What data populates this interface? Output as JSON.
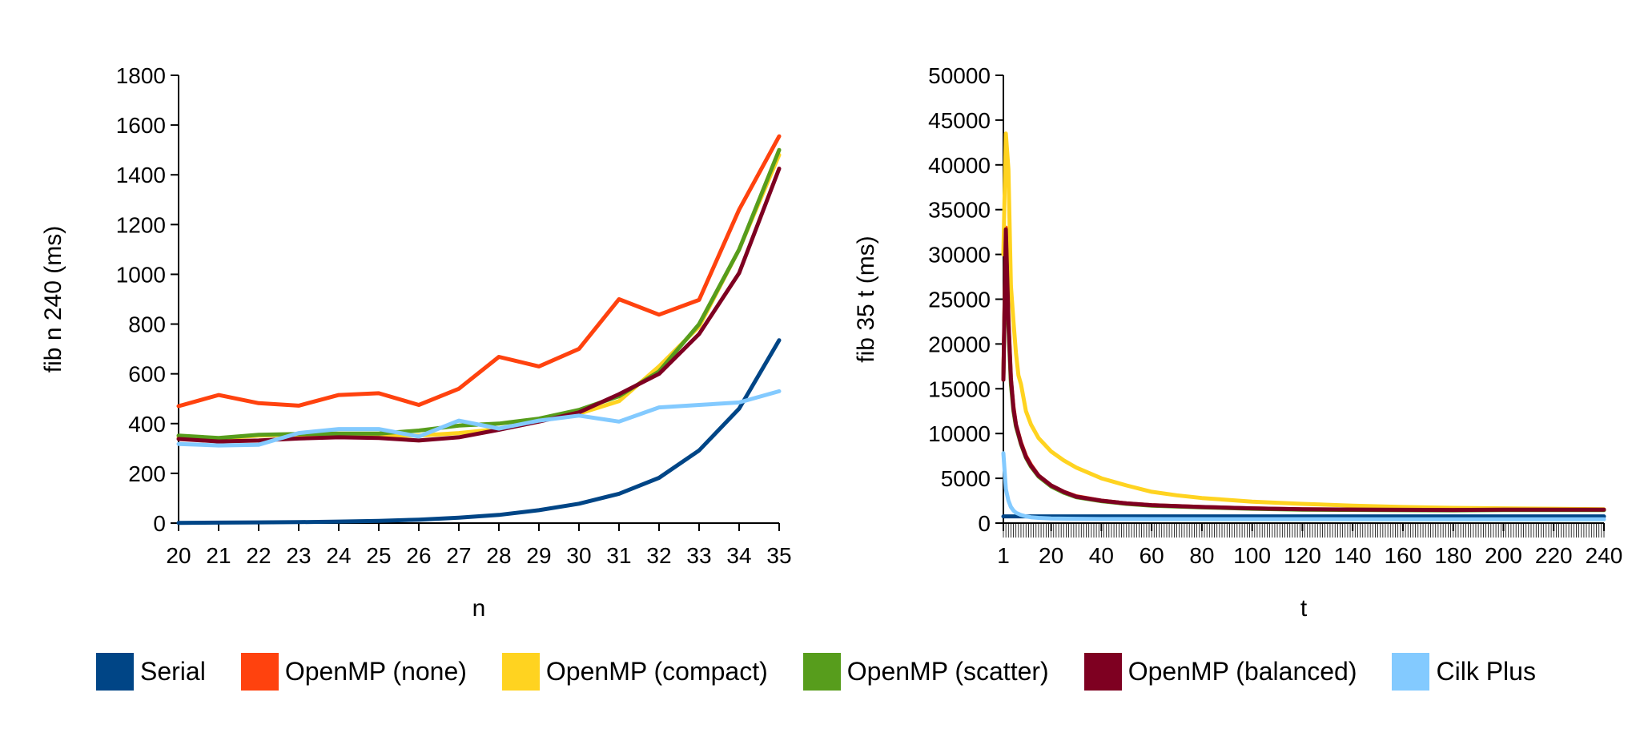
{
  "colors": {
    "Serial": "#004586",
    "OpenMP (none)": "#ff420e",
    "OpenMP (compact)": "#ffd320",
    "OpenMP (scatter)": "#579d1c",
    "OpenMP (balanced)": "#7e0021",
    "Cilk Plus": "#83caff"
  },
  "legend": [
    {
      "name": "Serial",
      "label": "Serial"
    },
    {
      "name": "OpenMP (none)",
      "label": "OpenMP (none)"
    },
    {
      "name": "OpenMP (compact)",
      "label": "OpenMP (compact)"
    },
    {
      "name": "OpenMP (scatter)",
      "label": "OpenMP (scatter)"
    },
    {
      "name": "OpenMP (balanced)",
      "label": "OpenMP (balanced)"
    },
    {
      "name": "Cilk Plus",
      "label": "Cilk Plus"
    }
  ],
  "chart_data": [
    {
      "type": "line",
      "title": "",
      "xlabel": "n",
      "ylabel": "fib n 240 (ms)",
      "x": [
        20,
        21,
        22,
        23,
        24,
        25,
        26,
        27,
        28,
        29,
        30,
        31,
        32,
        33,
        34,
        35
      ],
      "xticks": [
        "20",
        "21",
        "22",
        "23",
        "24",
        "25",
        "26",
        "27",
        "28",
        "29",
        "30",
        "31",
        "32",
        "33",
        "34",
        "35"
      ],
      "ylim": [
        0,
        1800
      ],
      "yticks": [
        "0",
        "200",
        "400",
        "600",
        "800",
        "1000",
        "1200",
        "1400",
        "1600",
        "1800"
      ],
      "grid": false,
      "legend_position": "bottom",
      "series": [
        {
          "name": "Serial",
          "values": [
            1,
            2,
            3,
            4,
            6,
            9,
            14,
            22,
            33,
            52,
            78,
            118,
            182,
            292,
            460,
            735
          ]
        },
        {
          "name": "OpenMP (none)",
          "values": [
            470,
            515,
            482,
            472,
            515,
            522,
            475,
            540,
            668,
            630,
            700,
            900,
            838,
            897,
            1260,
            1555
          ]
        },
        {
          "name": "OpenMP (compact)",
          "values": [
            345,
            340,
            352,
            355,
            355,
            352,
            352,
            362,
            378,
            410,
            440,
            490,
            630,
            790,
            1100,
            1480
          ]
        },
        {
          "name": "OpenMP (scatter)",
          "values": [
            352,
            342,
            355,
            358,
            360,
            360,
            372,
            392,
            400,
            420,
            455,
            510,
            610,
            800,
            1100,
            1500
          ]
        },
        {
          "name": "OpenMP (balanced)",
          "values": [
            338,
            328,
            332,
            340,
            345,
            342,
            332,
            345,
            375,
            408,
            445,
            518,
            600,
            760,
            1005,
            1425
          ]
        },
        {
          "name": "Cilk Plus",
          "values": [
            318,
            312,
            315,
            362,
            378,
            378,
            348,
            412,
            380,
            412,
            432,
            408,
            465,
            475,
            485,
            530
          ]
        }
      ]
    },
    {
      "type": "line",
      "title": "",
      "xlabel": "t",
      "ylabel": "fib 35 t (ms)",
      "xlim": [
        1,
        240
      ],
      "xticks": [
        "1",
        "20",
        "40",
        "60",
        "80",
        "100",
        "120",
        "140",
        "160",
        "180",
        "200",
        "220",
        "240"
      ],
      "ylim": [
        0,
        50000
      ],
      "yticks": [
        "0",
        "5000",
        "10000",
        "15000",
        "20000",
        "25000",
        "30000",
        "35000",
        "40000",
        "45000",
        "50000"
      ],
      "grid": false,
      "legend_position": "bottom",
      "series": [
        {
          "name": "Serial",
          "x": [
            1,
            240
          ],
          "values": [
            750,
            750
          ]
        },
        {
          "name": "OpenMP (none)",
          "x": [
            1,
            2,
            3,
            4,
            5,
            6,
            8,
            10,
            12,
            15,
            20,
            25,
            30,
            40,
            50,
            60,
            80,
            100,
            120,
            150,
            180,
            200,
            240
          ],
          "values": [
            16500,
            33000,
            22500,
            16000,
            13000,
            11000,
            9000,
            7500,
            6500,
            5300,
            4200,
            3500,
            3000,
            2500,
            2200,
            2000,
            1800,
            1650,
            1550,
            1500,
            1450,
            1500,
            1500
          ]
        },
        {
          "name": "OpenMP (compact)",
          "x": [
            1,
            2,
            3,
            4,
            5,
            6,
            7,
            8,
            10,
            12,
            15,
            20,
            25,
            30,
            40,
            50,
            60,
            70,
            80,
            100,
            120,
            140,
            160,
            180,
            200,
            220,
            240
          ],
          "values": [
            30000,
            43500,
            39500,
            26500,
            22500,
            19000,
            16500,
            15500,
            12500,
            11000,
            9500,
            8000,
            7000,
            6200,
            5000,
            4200,
            3500,
            3100,
            2800,
            2400,
            2150,
            1950,
            1800,
            1700,
            1650,
            1600,
            1550
          ]
        },
        {
          "name": "OpenMP (scatter)",
          "x": [
            1,
            2,
            3,
            4,
            5,
            6,
            8,
            10,
            12,
            15,
            20,
            25,
            30,
            40,
            50,
            60,
            80,
            100,
            120,
            150,
            180,
            200,
            240
          ],
          "values": [
            16000,
            32000,
            22000,
            15500,
            12500,
            10800,
            8800,
            7300,
            6300,
            5200,
            4100,
            3400,
            2900,
            2450,
            2150,
            1950,
            1750,
            1600,
            1500,
            1450,
            1420,
            1450,
            1450
          ]
        },
        {
          "name": "OpenMP (balanced)",
          "x": [
            1,
            2,
            3,
            4,
            5,
            6,
            8,
            10,
            12,
            15,
            20,
            25,
            30,
            40,
            50,
            60,
            80,
            100,
            120,
            150,
            180,
            200,
            240
          ],
          "values": [
            16000,
            32800,
            22800,
            16200,
            12800,
            11000,
            8900,
            7400,
            6400,
            5300,
            4200,
            3500,
            2950,
            2500,
            2200,
            2000,
            1800,
            1650,
            1550,
            1500,
            1470,
            1500,
            1500
          ]
        },
        {
          "name": "Cilk Plus",
          "x": [
            1,
            2,
            3,
            4,
            5,
            6,
            8,
            10,
            12,
            15,
            20,
            30,
            40,
            60,
            100,
            150,
            200,
            240
          ],
          "values": [
            7800,
            3800,
            2500,
            1800,
            1400,
            1150,
            900,
            750,
            650,
            580,
            520,
            480,
            460,
            450,
            440,
            430,
            430,
            430
          ]
        }
      ]
    }
  ]
}
